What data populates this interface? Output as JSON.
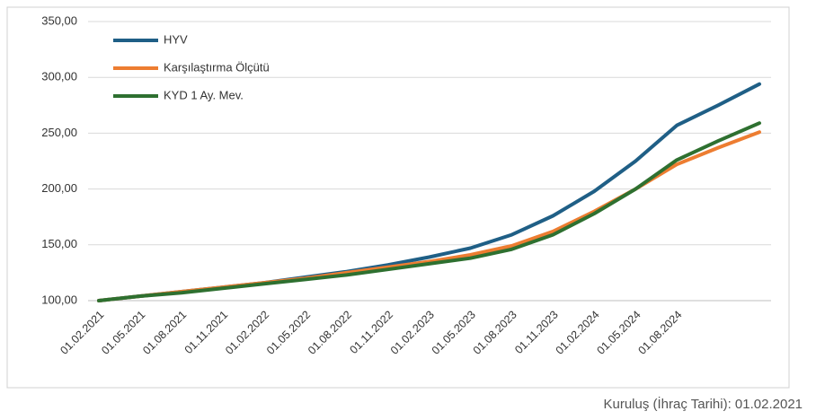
{
  "chart_data": {
    "type": "line",
    "categories": [
      "01.02.2021",
      "01.05.2021",
      "01.08.2021",
      "01.11.2021",
      "01.02.2022",
      "01.05.2022",
      "01.08.2022",
      "01.11.2022",
      "01.02.2023",
      "01.05.2023",
      "01.08.2023",
      "01.11.2023",
      "01.02.2024",
      "01.05.2024",
      "01.08.2024",
      null,
      null
    ],
    "series": [
      {
        "name": "HYV",
        "color": "#1f5f86",
        "values": [
          100,
          104,
          108,
          112,
          116,
          121,
          126,
          132,
          139,
          147,
          159,
          176,
          198,
          225,
          257,
          275,
          294
        ]
      },
      {
        "name": "Karşılaştırma Ölçütü",
        "color": "#ed7d31",
        "values": [
          100,
          104,
          108,
          112,
          116,
          120,
          125,
          130,
          135,
          141,
          149,
          162,
          180,
          200,
          222,
          237,
          251
        ]
      },
      {
        "name": "KYD 1 Ay. Mev.",
        "color": "#2e7030",
        "values": [
          100,
          104,
          107,
          111,
          115,
          119,
          123,
          128,
          133,
          138,
          146,
          159,
          178,
          200,
          226,
          243,
          259
        ]
      }
    ],
    "ylim": [
      100,
      350
    ],
    "yticks": [
      {
        "value": 100,
        "label": "100,00"
      },
      {
        "value": 150,
        "label": "150,00"
      },
      {
        "value": 200,
        "label": "200,00"
      },
      {
        "value": 250,
        "label": "250,00"
      },
      {
        "value": 300,
        "label": "300,00"
      },
      {
        "value": 350,
        "label": "350,00"
      }
    ],
    "grid": true,
    "legend": "upper-left",
    "footnote": "Kuruluş (İhraç Tarihi): 01.02.2021"
  }
}
